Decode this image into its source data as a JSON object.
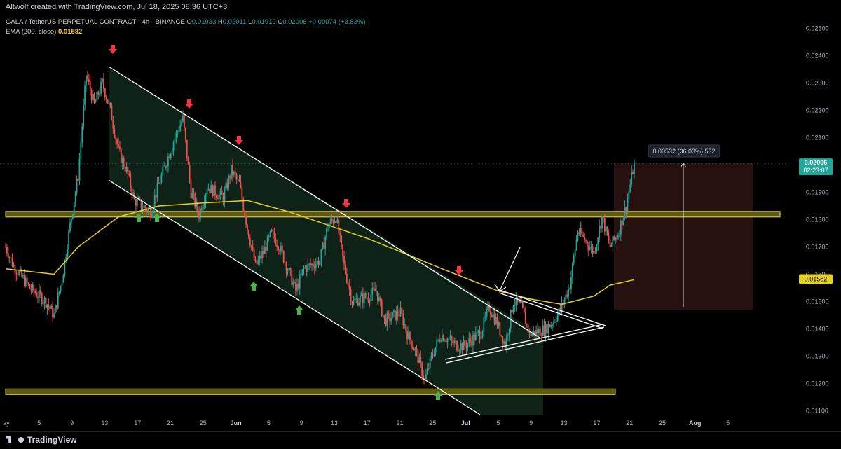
{
  "creator_text": "Altwolf created with TradingView.com, Jul 18, 2025 08:36 UTC+3",
  "symbol": {
    "name": "GALA / TetherUS PERPETUAL CONTRACT · 4h · BINANCE",
    "o_label": "O",
    "o_value": "0.01933",
    "h_label": "H",
    "h_value": "0.02011",
    "l_label": "L",
    "l_value": "0.01919",
    "c_label": "C",
    "c_value": "0.02006",
    "change": "+0.00074 (+3.83%)"
  },
  "ema": {
    "label": "EMA (200, close)",
    "value": "0.01582"
  },
  "price_axis": {
    "ticks": [
      "0.02500",
      "0.02400",
      "0.02300",
      "0.02200",
      "0.02100",
      "0.01900",
      "0.01800",
      "0.01700",
      "0.01600",
      "0.01500",
      "0.01400",
      "0.01300",
      "0.01200",
      "0.01100"
    ],
    "current_price": "0.02006",
    "countdown": "02:23:07",
    "ema_badge": "0.01582"
  },
  "time_axis": {
    "ticks": [
      {
        "label": "ay",
        "bold": false
      },
      {
        "label": "5",
        "bold": false
      },
      {
        "label": "9",
        "bold": false
      },
      {
        "label": "13",
        "bold": false
      },
      {
        "label": "17",
        "bold": false
      },
      {
        "label": "21",
        "bold": false
      },
      {
        "label": "25",
        "bold": false
      },
      {
        "label": "Jun",
        "bold": true
      },
      {
        "label": "5",
        "bold": false
      },
      {
        "label": "9",
        "bold": false
      },
      {
        "label": "13",
        "bold": false
      },
      {
        "label": "17",
        "bold": false
      },
      {
        "label": "21",
        "bold": false
      },
      {
        "label": "25",
        "bold": false
      },
      {
        "label": "Jul",
        "bold": true
      },
      {
        "label": "5",
        "bold": false
      },
      {
        "label": "9",
        "bold": false
      },
      {
        "label": "13",
        "bold": false
      },
      {
        "label": "17",
        "bold": false
      },
      {
        "label": "21",
        "bold": false
      },
      {
        "label": "25",
        "bold": false
      },
      {
        "label": "Aug",
        "bold": true
      },
      {
        "label": "5",
        "bold": false
      }
    ]
  },
  "measure_label": "0.00532 (36.03%) 532",
  "footer_brand": "TradingView",
  "colors": {
    "up": "#26a69a",
    "down": "#ef5350",
    "ema": "#e6d21e",
    "zone_fill": "#5e5a14",
    "zone_border": "#e6dc5a",
    "channel_fill": "#0f2418",
    "measure_fill": "#2a1212",
    "arrow_down": "#f23645",
    "arrow_up": "#4caf50",
    "lines": "#ffffff"
  },
  "chart_data": {
    "type": "candlestick",
    "title": "GALA / TetherUS PERPETUAL CONTRACT · 4h · BINANCE",
    "ylim": [
      0.0106,
      0.0255
    ],
    "y_ticks": [
      0.025,
      0.024,
      0.023,
      0.022,
      0.021,
      0.019,
      0.018,
      0.017,
      0.016,
      0.015,
      0.014,
      0.013,
      0.012,
      0.011
    ],
    "last_close": 0.02006,
    "ema200_last": 0.01582,
    "keypoints": [
      {
        "t": "May 1",
        "p": 0.017
      },
      {
        "t": "May 2",
        "p": 0.0163
      },
      {
        "t": "May 4",
        "p": 0.0155
      },
      {
        "t": "May 6",
        "p": 0.015
      },
      {
        "t": "May 7",
        "p": 0.0145
      },
      {
        "t": "May 8",
        "p": 0.0158
      },
      {
        "t": "May 9",
        "p": 0.0178
      },
      {
        "t": "May 10",
        "p": 0.0196
      },
      {
        "t": "May 11",
        "p": 0.0233
      },
      {
        "t": "May 12",
        "p": 0.0222
      },
      {
        "t": "May 13",
        "p": 0.023
      },
      {
        "t": "May 14",
        "p": 0.022
      },
      {
        "t": "May 15",
        "p": 0.0205
      },
      {
        "t": "May 16",
        "p": 0.0198
      },
      {
        "t": "May 17",
        "p": 0.0187
      },
      {
        "t": "May 19",
        "p": 0.0183
      },
      {
        "t": "May 20",
        "p": 0.0193
      },
      {
        "t": "May 22",
        "p": 0.021
      },
      {
        "t": "May 23",
        "p": 0.0217
      },
      {
        "t": "May 24",
        "p": 0.019
      },
      {
        "t": "May 25",
        "p": 0.0182
      },
      {
        "t": "May 26",
        "p": 0.0192
      },
      {
        "t": "May 28",
        "p": 0.0188
      },
      {
        "t": "May 29",
        "p": 0.0198
      },
      {
        "t": "May 30",
        "p": 0.0193
      },
      {
        "t": "May 31",
        "p": 0.0177
      },
      {
        "t": "Jun 1",
        "p": 0.0163
      },
      {
        "t": "Jun 2",
        "p": 0.0168
      },
      {
        "t": "Jun 3",
        "p": 0.0175
      },
      {
        "t": "Jun 4",
        "p": 0.017
      },
      {
        "t": "Jun 5",
        "p": 0.0162
      },
      {
        "t": "Jun 6",
        "p": 0.0154
      },
      {
        "t": "Jun 7",
        "p": 0.0162
      },
      {
        "t": "Jun 9",
        "p": 0.0165
      },
      {
        "t": "Jun 10",
        "p": 0.0178
      },
      {
        "t": "Jun 11",
        "p": 0.0181
      },
      {
        "t": "Jun 12",
        "p": 0.0163
      },
      {
        "t": "Jun 13",
        "p": 0.015
      },
      {
        "t": "Jun 15",
        "p": 0.0152
      },
      {
        "t": "Jun 16",
        "p": 0.0154
      },
      {
        "t": "Jun 17",
        "p": 0.0143
      },
      {
        "t": "Jun 19",
        "p": 0.0146
      },
      {
        "t": "Jun 20",
        "p": 0.0137
      },
      {
        "t": "Jun 21",
        "p": 0.0131
      },
      {
        "t": "Jun 22",
        "p": 0.0121
      },
      {
        "t": "Jun 23",
        "p": 0.0131
      },
      {
        "t": "Jun 24",
        "p": 0.0138
      },
      {
        "t": "Jun 26",
        "p": 0.0134
      },
      {
        "t": "Jun 27",
        "p": 0.0134
      },
      {
        "t": "Jun 29",
        "p": 0.0139
      },
      {
        "t": "Jun 30",
        "p": 0.0148
      },
      {
        "t": "Jul 1",
        "p": 0.0142
      },
      {
        "t": "Jul 2",
        "p": 0.0134
      },
      {
        "t": "Jul 3",
        "p": 0.015
      },
      {
        "t": "Jul 4",
        "p": 0.0148
      },
      {
        "t": "Jul 5",
        "p": 0.0138
      },
      {
        "t": "Jul 6",
        "p": 0.0139
      },
      {
        "t": "Jul 7",
        "p": 0.014
      },
      {
        "t": "Jul 8",
        "p": 0.0143
      },
      {
        "t": "Jul 9",
        "p": 0.0148
      },
      {
        "t": "Jul 10",
        "p": 0.0156
      },
      {
        "t": "Jul 11",
        "p": 0.0176
      },
      {
        "t": "Jul 12",
        "p": 0.0172
      },
      {
        "t": "Jul 13",
        "p": 0.0168
      },
      {
        "t": "Jul 14",
        "p": 0.0181
      },
      {
        "t": "Jul 15",
        "p": 0.017
      },
      {
        "t": "Jul 16",
        "p": 0.0175
      },
      {
        "t": "Jul 17",
        "p": 0.0185
      },
      {
        "t": "Jul 18",
        "p": 0.02006
      }
    ],
    "ema200": [
      {
        "t": "May 1",
        "p": 0.0162
      },
      {
        "t": "May 7",
        "p": 0.016
      },
      {
        "t": "May 10",
        "p": 0.017
      },
      {
        "t": "May 15",
        "p": 0.0181
      },
      {
        "t": "May 20",
        "p": 0.0185
      },
      {
        "t": "May 25",
        "p": 0.0186
      },
      {
        "t": "May 31",
        "p": 0.0187
      },
      {
        "t": "Jun 5",
        "p": 0.0183
      },
      {
        "t": "Jun 10",
        "p": 0.0178
      },
      {
        "t": "Jun 15",
        "p": 0.0173
      },
      {
        "t": "Jun 20",
        "p": 0.0167
      },
      {
        "t": "Jun 25",
        "p": 0.0161
      },
      {
        "t": "Jul 1",
        "p": 0.0154
      },
      {
        "t": "Jul 5",
        "p": 0.0151
      },
      {
        "t": "Jul 9",
        "p": 0.0149
      },
      {
        "t": "Jul 13",
        "p": 0.0152
      },
      {
        "t": "Jul 15",
        "p": 0.0156
      },
      {
        "t": "Jul 18",
        "p": 0.0158
      }
    ],
    "zones": [
      {
        "from": 0.0181,
        "to": 0.0183
      },
      {
        "from": 0.01165,
        "to": 0.0118
      }
    ],
    "measure": {
      "from": 0.0147,
      "to": 0.02006,
      "label": "0.00532 (36.03%) 532"
    }
  }
}
